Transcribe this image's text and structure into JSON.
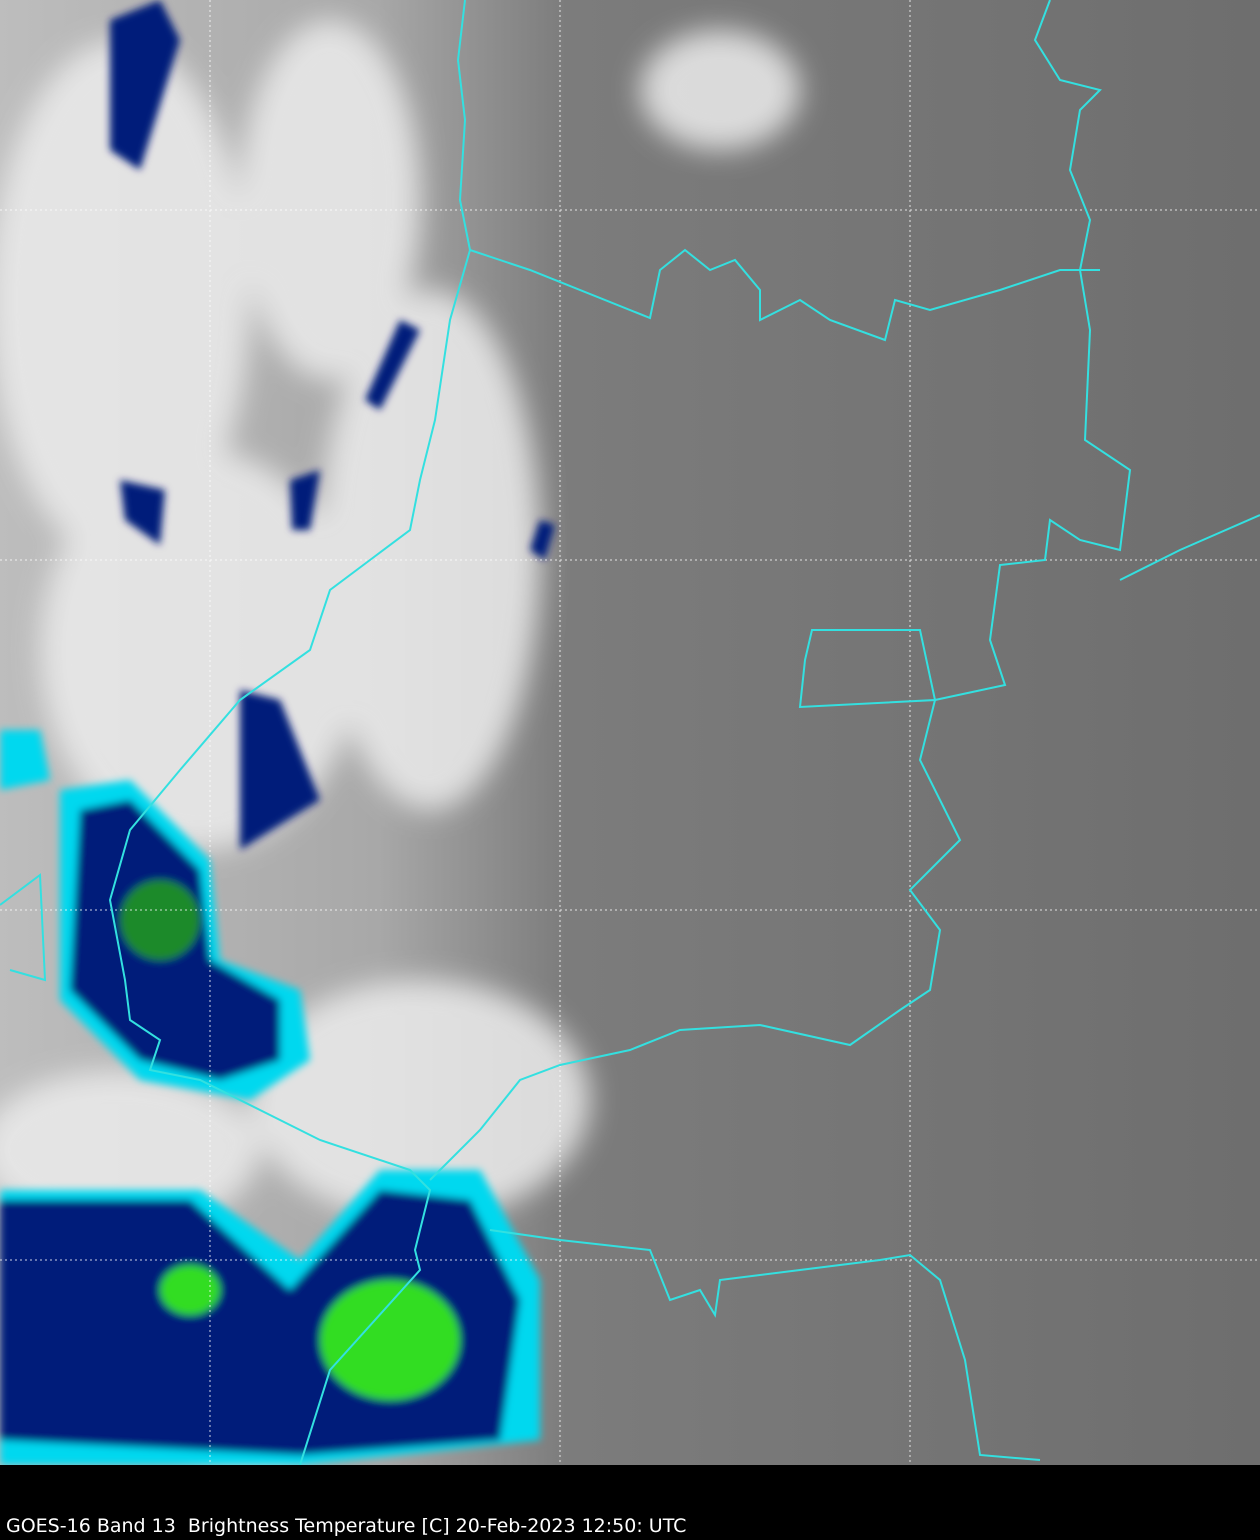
{
  "caption": "GOES-16 Band 13  Brightness Temperature [C] 20-Feb-2023 12:50: UTC",
  "colors": {
    "background_land": "#6a6a6a",
    "cold_cloud": "#f2f2f2",
    "cyan": "#00e5f0",
    "dark_blue": "#001a6e",
    "green": "#33dd22",
    "border": "#33e0e0",
    "grid": "#ffffff"
  }
}
